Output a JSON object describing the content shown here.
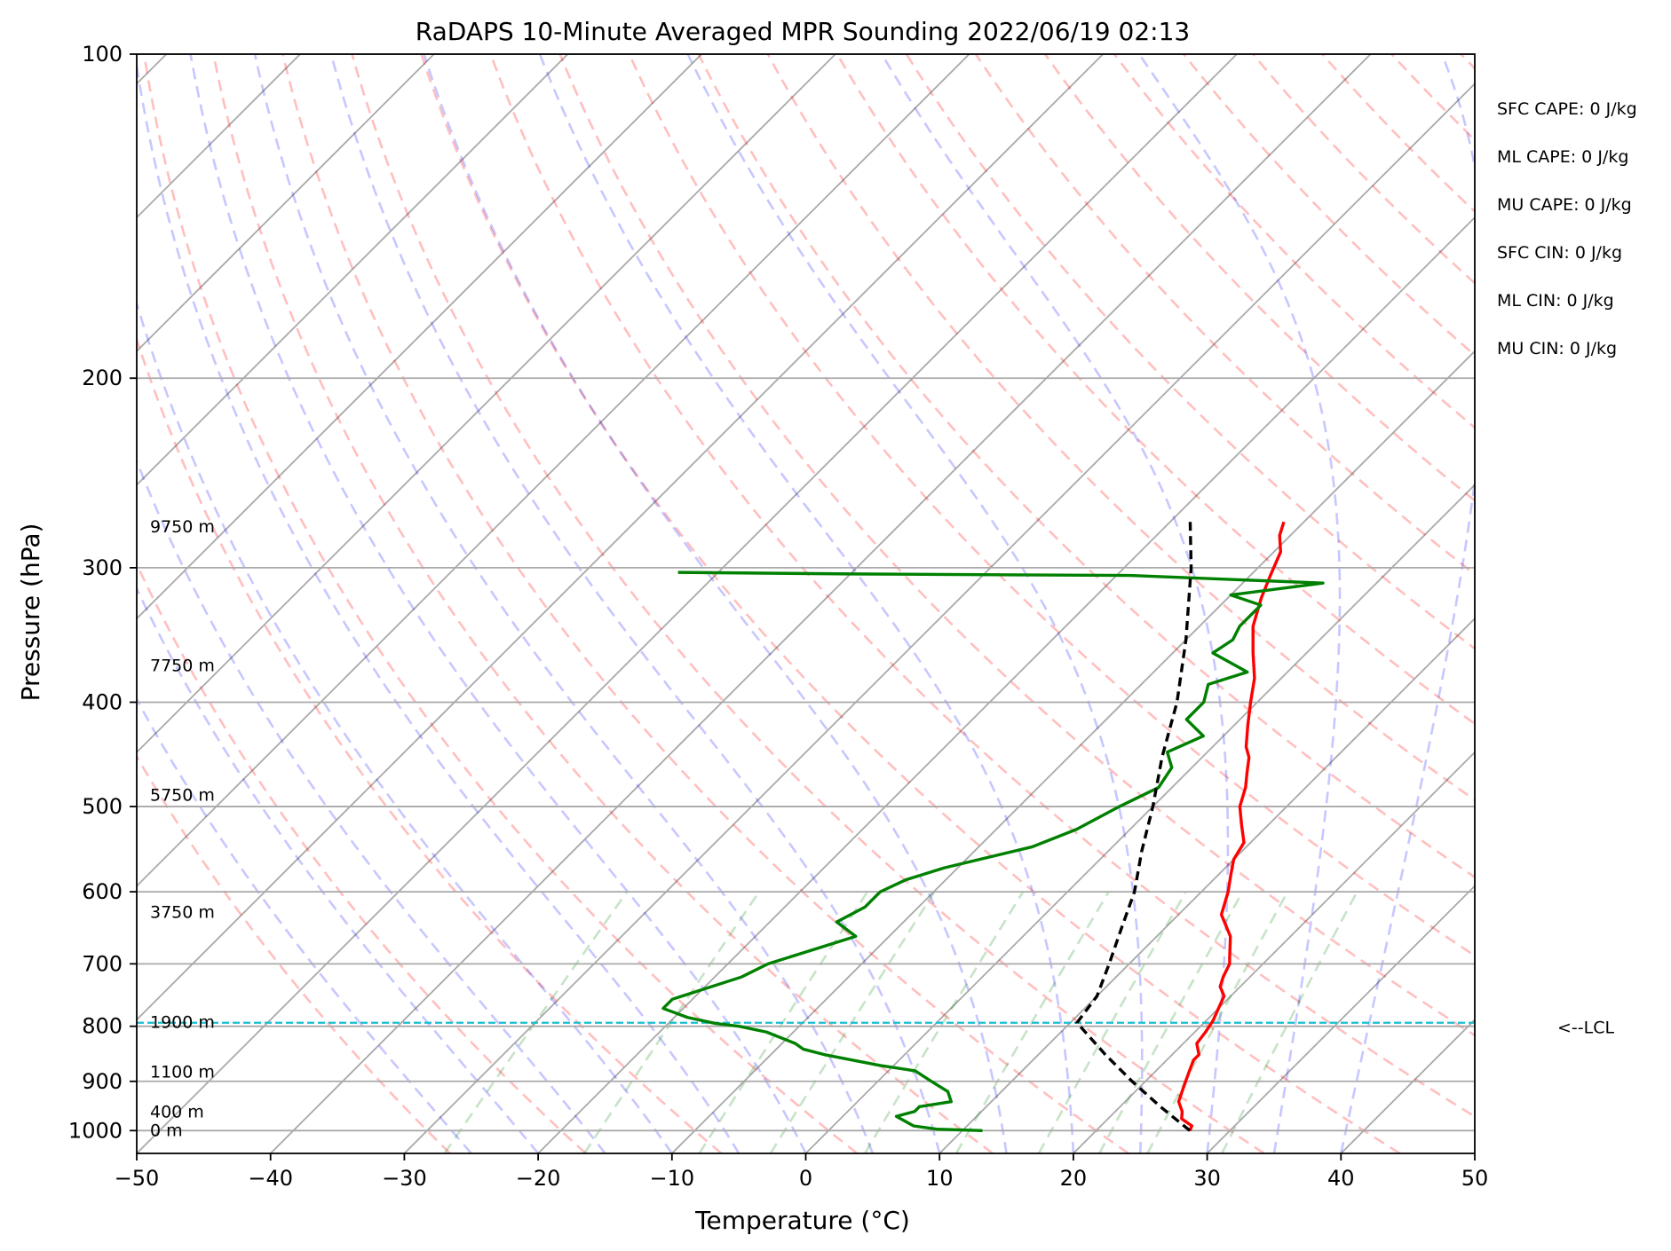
{
  "chart_data": {
    "type": "line",
    "subtype": "skew-t log-p",
    "title": "RaDAPS 10-Minute Averaged MPR Sounding 2022/06/19 02:13",
    "xlabel": "Temperature (°C)",
    "ylabel": "Pressure (hPa)",
    "xlim": [
      -50,
      50
    ],
    "ylim": [
      1050,
      100
    ],
    "y_scale": "log",
    "x_ticks": [
      -50,
      -40,
      -30,
      -20,
      -10,
      0,
      10,
      20,
      30,
      40,
      50
    ],
    "x_tick_labels": [
      "−50",
      "−40",
      "−30",
      "−20",
      "−10",
      "0",
      "10",
      "20",
      "30",
      "40",
      "50"
    ],
    "y_ticks": [
      1000,
      900,
      800,
      700,
      600,
      500,
      400,
      300,
      200,
      100
    ],
    "y_tick_labels": [
      "1000",
      "900",
      "800",
      "700",
      "600",
      "500",
      "400",
      "300",
      "200",
      "100"
    ],
    "grid": true,
    "height_labels": [
      {
        "text": "9750 m",
        "p": 275
      },
      {
        "text": "7750 m",
        "p": 370
      },
      {
        "text": "5750 m",
        "p": 488
      },
      {
        "text": "3750 m",
        "p": 627
      },
      {
        "text": "1900 m",
        "p": 794
      },
      {
        "text": "1100 m",
        "p": 883
      },
      {
        "text": "400 m",
        "p": 961
      },
      {
        "text": "0 m",
        "p": 1000
      }
    ],
    "indices": [
      "SFC CAPE: 0 J/kg",
      "ML CAPE: 0 J/kg",
      "MU CAPE: 0 J/kg",
      "SFC CIN: 0 J/kg",
      "ML CIN: 0 J/kg",
      "MU CIN: 0 J/kg"
    ],
    "lcl": {
      "p": 794,
      "label": "<--LCL",
      "color": "#17becf"
    },
    "series": [
      {
        "role": "temperature",
        "color": "#ff0000",
        "points": [
          [
            1000,
            27.0
          ],
          [
            990,
            26.8
          ],
          [
            975,
            25.5
          ],
          [
            960,
            25.0
          ],
          [
            940,
            24.0
          ],
          [
            920,
            23.5
          ],
          [
            900,
            23.0
          ],
          [
            880,
            22.5
          ],
          [
            860,
            22.0
          ],
          [
            850,
            22.0
          ],
          [
            840,
            21.5
          ],
          [
            830,
            21.0
          ],
          [
            810,
            20.8
          ],
          [
            790,
            20.5
          ],
          [
            770,
            20.0
          ],
          [
            750,
            19.5
          ],
          [
            735,
            18.5
          ],
          [
            720,
            18.0
          ],
          [
            700,
            17.5
          ],
          [
            690,
            17.0
          ],
          [
            660,
            15.5
          ],
          [
            630,
            13.2
          ],
          [
            600,
            12.0
          ],
          [
            580,
            11.0
          ],
          [
            560,
            10.0
          ],
          [
            540,
            9.5
          ],
          [
            520,
            8.0
          ],
          [
            500,
            6.5
          ],
          [
            480,
            5.5
          ],
          [
            465,
            4.5
          ],
          [
            450,
            3.5
          ],
          [
            440,
            2.5
          ],
          [
            420,
            1.0
          ],
          [
            400,
            -0.5
          ],
          [
            380,
            -2.0
          ],
          [
            360,
            -4.0
          ],
          [
            340,
            -6.0
          ],
          [
            320,
            -7.5
          ],
          [
            305,
            -8.5
          ],
          [
            290,
            -9.5
          ],
          [
            280,
            -10.8
          ],
          [
            272,
            -11.5
          ]
        ]
      },
      {
        "role": "dewpoint",
        "color": "#008000",
        "points": [
          [
            1000,
            11.5
          ],
          [
            997,
            8.0
          ],
          [
            990,
            6.0
          ],
          [
            980,
            5.0
          ],
          [
            970,
            4.0
          ],
          [
            960,
            5.0
          ],
          [
            950,
            5.0
          ],
          [
            940,
            7.0
          ],
          [
            920,
            6.0
          ],
          [
            900,
            4.0
          ],
          [
            880,
            2.0
          ],
          [
            870,
            -1.0
          ],
          [
            850,
            -6.0
          ],
          [
            840,
            -8.0
          ],
          [
            830,
            -9.0
          ],
          [
            810,
            -12.0
          ],
          [
            800,
            -14.5
          ],
          [
            795,
            -16.5
          ],
          [
            785,
            -19.0
          ],
          [
            770,
            -21.5
          ],
          [
            755,
            -21.5
          ],
          [
            720,
            -18.0
          ],
          [
            700,
            -17.0
          ],
          [
            660,
            -12.5
          ],
          [
            640,
            -15.0
          ],
          [
            620,
            -14.0
          ],
          [
            600,
            -14.0
          ],
          [
            585,
            -13.0
          ],
          [
            570,
            -11.0
          ],
          [
            545,
            -6.0
          ],
          [
            525,
            -4.0
          ],
          [
            500,
            -2.5
          ],
          [
            480,
            -1.0
          ],
          [
            460,
            -1.5
          ],
          [
            445,
            -3.0
          ],
          [
            430,
            -1.5
          ],
          [
            415,
            -4.0
          ],
          [
            400,
            -4.0
          ],
          [
            385,
            -5.0
          ],
          [
            375,
            -3.0
          ],
          [
            360,
            -7.0
          ],
          [
            350,
            -6.5
          ],
          [
            340,
            -7.0
          ],
          [
            325,
            -7.0
          ],
          [
            318,
            -10.0
          ],
          [
            310,
            -4.0
          ],
          [
            305,
            -19.0
          ],
          [
            304,
            -40.0
          ],
          [
            303,
            -53.0
          ]
        ]
      },
      {
        "role": "parcel",
        "color": "#000000",
        "points": [
          [
            1000,
            27.0
          ],
          [
            950,
            23.0
          ],
          [
            900,
            19.0
          ],
          [
            850,
            15.0
          ],
          [
            800,
            11.0
          ],
          [
            794,
            10.5
          ],
          [
            750,
            10.0
          ],
          [
            700,
            8.5
          ],
          [
            650,
            6.8
          ],
          [
            600,
            5.0
          ],
          [
            550,
            2.5
          ],
          [
            500,
            0.0
          ],
          [
            450,
            -3.0
          ],
          [
            400,
            -6.0
          ],
          [
            350,
            -10.0
          ],
          [
            300,
            -15.0
          ],
          [
            272,
            -18.5
          ]
        ]
      }
    ]
  }
}
